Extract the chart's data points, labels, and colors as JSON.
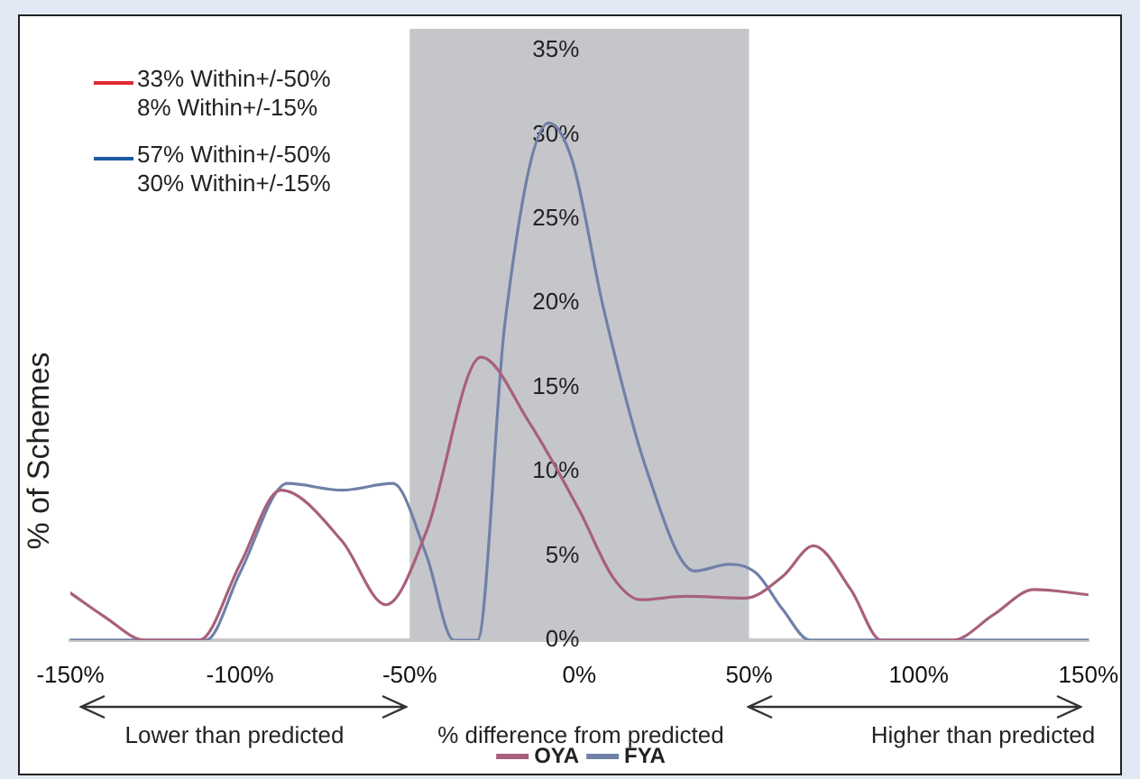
{
  "chart_data": {
    "type": "line",
    "xlabel": "% difference from predicted",
    "ylabel": "% of Schemes",
    "annotations": [
      "33% Within+/-50%",
      "8% Within+/-15%",
      "57% Within+/-50%",
      "30% Within+/-15%",
      "Lower than predicted",
      "Higher than predicted"
    ],
    "xlim": [
      -150,
      150
    ],
    "ylim": [
      0,
      35
    ],
    "xticks": [
      {
        "value": -150,
        "label": "-150%"
      },
      {
        "value": -100,
        "label": "-100%"
      },
      {
        "value": -50,
        "label": "-50%"
      },
      {
        "value": 0,
        "label": "0%"
      },
      {
        "value": 50,
        "label": "50%"
      },
      {
        "value": 100,
        "label": "100%"
      },
      {
        "value": 150,
        "label": "150%"
      }
    ],
    "yticks": [
      {
        "value": 0,
        "label": "0%"
      },
      {
        "value": 5,
        "label": "5%"
      },
      {
        "value": 10,
        "label": "10%"
      },
      {
        "value": 15,
        "label": "15%"
      },
      {
        "value": 20,
        "label": "20%"
      },
      {
        "value": 25,
        "label": "25%"
      },
      {
        "value": 30,
        "label": "30%"
      },
      {
        "value": 35,
        "label": "35%"
      }
    ],
    "bands": [
      {
        "axis": "x",
        "from": -50,
        "to": 50,
        "color": "#c4c6ca"
      }
    ],
    "grid": false,
    "legend": "bottom",
    "marker": "none",
    "line_style": "solid",
    "series": [
      {
        "name": "OYA",
        "color": "#a8607c",
        "x": [
          -150,
          -140,
          -128,
          -112,
          -100,
          -88,
          -70,
          -57,
          -45,
          -29,
          -15,
          0,
          10,
          18,
          31,
          49,
          60,
          69,
          80,
          89,
          110,
          122,
          134,
          150
        ],
        "values": [
          2.8,
          1.4,
          0,
          0,
          4.5,
          8.9,
          5.9,
          2.1,
          6.5,
          16.8,
          13,
          7.7,
          3.7,
          2.4,
          2.6,
          2.5,
          3.8,
          5.6,
          3,
          0,
          0,
          1.5,
          3,
          2.7
        ]
      },
      {
        "name": "FYA",
        "color": "#7080a8",
        "x": [
          -150,
          -110,
          -100,
          -86,
          -70,
          -55,
          -45,
          -37,
          -30,
          -22,
          -9,
          -2,
          7,
          20,
          34,
          44,
          52,
          60,
          68,
          150
        ],
        "values": [
          0,
          0,
          4,
          9.3,
          8.9,
          9.3,
          5,
          0,
          0,
          18.7,
          30.7,
          28.4,
          19.8,
          10,
          4.1,
          4.5,
          4,
          1.8,
          0,
          0
        ]
      }
    ]
  }
}
